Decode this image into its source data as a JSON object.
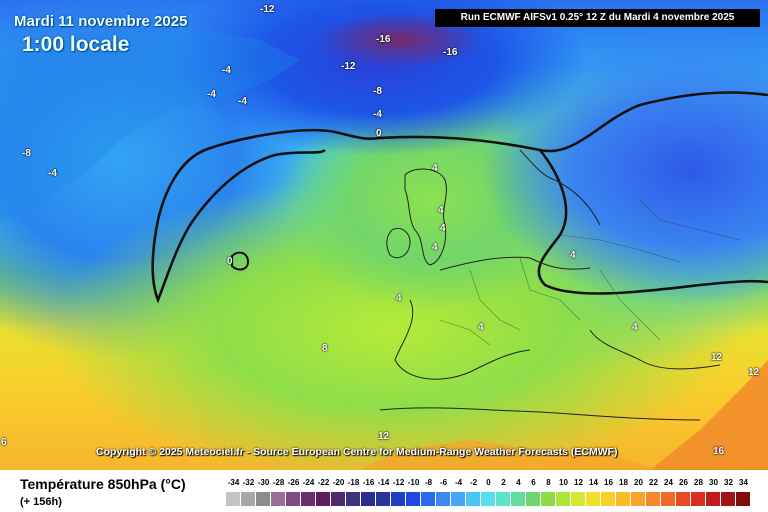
{
  "header": {
    "date": "Mardi 11 novembre 2025",
    "time": "1:00 locale",
    "run": "Run ECMWF AIFSv1 0.25° 12 Z du Mardi 4 novembre 2025"
  },
  "copyright": "Copyright © 2025 Meteociel.fr - Source European Centre for Medium-Range Weather Forecasts (ECMWF)",
  "contour_labels": [
    "-12",
    "-16",
    "-16",
    "-12",
    "-4",
    "-4",
    "-4",
    "-8",
    "-4",
    "-8",
    "-4",
    "0",
    "4",
    "4",
    "4",
    "4",
    "4",
    "0",
    "4",
    "8",
    "4",
    "4",
    "12",
    "12",
    "12",
    "16",
    "6"
  ],
  "legend": {
    "title": "Température 850hPa (°C)",
    "lead": "(+ 156h)",
    "ticks": [
      "-34",
      "-32",
      "-30",
      "-28",
      "-26",
      "-24",
      "-22",
      "-20",
      "-18",
      "-16",
      "-14",
      "-12",
      "-10",
      "-8",
      "-6",
      "-4",
      "-2",
      "0",
      "2",
      "4",
      "6",
      "8",
      "10",
      "12",
      "14",
      "16",
      "18",
      "20",
      "22",
      "24",
      "26",
      "28",
      "30",
      "32",
      "34"
    ],
    "colors": [
      "#c4c4c4",
      "#a8a8a8",
      "#8c8c8c",
      "#9a6e9a",
      "#7e4c80",
      "#6a2e6e",
      "#5a1f5c",
      "#4c2c6e",
      "#3e347e",
      "#2c2c8c",
      "#26349c",
      "#1c40c0",
      "#2048e0",
      "#2a6af0",
      "#3a88f4",
      "#46a6f6",
      "#4ec4f6",
      "#58dcee",
      "#5ee2c8",
      "#64dca0",
      "#70d470",
      "#8cdc4a",
      "#aee43c",
      "#d4e830",
      "#f0e02c",
      "#f8d028",
      "#f8bc28",
      "#f8a42a",
      "#f6882a",
      "#f06a28",
      "#e84c24",
      "#d83020",
      "#c01c1c",
      "#a01414",
      "#800c0c"
    ]
  }
}
